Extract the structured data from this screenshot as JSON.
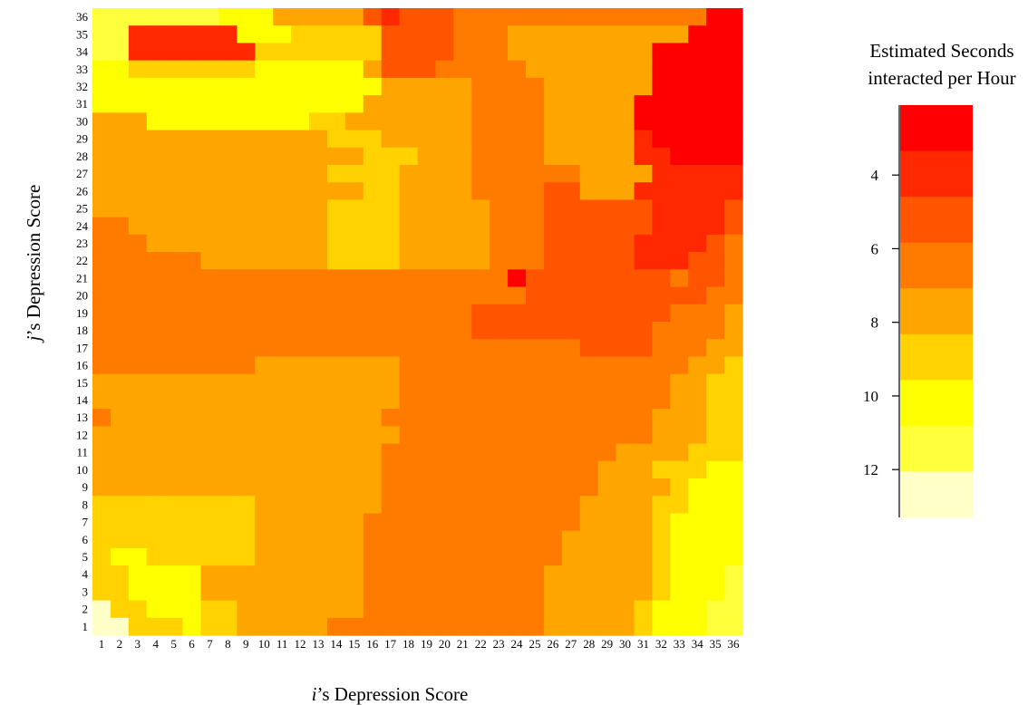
{
  "chart_data": {
    "type": "heatmap",
    "xlabel_italic": "i",
    "xlabel_rest": "’s Depression Score",
    "ylabel_italic": "j",
    "ylabel_rest": "’s Depression Score",
    "x_ticks": [
      "1",
      "2",
      "3",
      "4",
      "5",
      "6",
      "7",
      "8",
      "9",
      "10",
      "11",
      "12",
      "13",
      "14",
      "15",
      "16",
      "17",
      "18",
      "19",
      "20",
      "21",
      "22",
      "23",
      "24",
      "25",
      "26",
      "27",
      "28",
      "29",
      "30",
      "31",
      "32",
      "33",
      "34",
      "35",
      "36"
    ],
    "y_ticks": [
      "1",
      "2",
      "3",
      "4",
      "5",
      "6",
      "7",
      "8",
      "9",
      "10",
      "11",
      "12",
      "13",
      "14",
      "15",
      "16",
      "17",
      "18",
      "19",
      "20",
      "21",
      "22",
      "23",
      "24",
      "25",
      "26",
      "27",
      "28",
      "29",
      "30",
      "31",
      "32",
      "33",
      "34",
      "35",
      "36"
    ],
    "legend": {
      "title_lines": [
        "Estimated Seconds",
        "interacted per Hour"
      ],
      "ticks": [
        "4",
        "6",
        "8",
        "10",
        "12"
      ],
      "tick_values": [
        4,
        6,
        8,
        10,
        12
      ],
      "range": [
        2.1,
        13.3
      ],
      "colors_top_to_bottom": [
        "#FF0000",
        "#FF2800",
        "#FF5500",
        "#FF7B00",
        "#FFA500",
        "#FFD200",
        "#FFFF00",
        "#FFFF3C",
        "#FFFFC8"
      ]
    },
    "rows_top_to_bottom_y36_to_y1": [
      "777777766644444212223333333333333300",
      "771111116665555522223334444444444000",
      "771111111555555522223334444444400000",
      "665555555666666422233333444444400000",
      "666666666666666644444333344444400000",
      "666666666666666444444333344444000000",
      "444666666666554444444333344444000000",
      "444444444444455544444333344444100000",
      "444444444444444555444333344444110000",
      "444444444444455554444333333444411111",
      "444444444444444554444333322444111111",
      "444444444444455554444433322222211112",
      "334444444444455554444433322222211112",
      "333444444444455554444433322222111123",
      "333333444444455554444433322222111223",
      "333333333333333333333330222222223223",
      "333333333333333333333333222222222233",
      "333333333333333333333222222222223334",
      "333333333333333333333222222222233334",
      "333333333333333333333333333222233344",
      "333333333444444443333333333333333445",
      "444444444444444443333333333333334455",
      "444444444444444443333333333333334455",
      "344444444444444433333333333333344455",
      "444444444444444443333333333333344455",
      "444444444444444433333333333334444555",
      "444444444444444433333333333344455566",
      "444444444444444433333333333344445666",
      "555555555444444433333333333444455666",
      "555555555444444333333333333444456666",
      "555555555444444333333333334444456666",
      "566555555444444333333333334444456666",
      "556666444444444333333333344444456667",
      "556666444444444333333333344444456667",
      "855666554444444333333333344444566677",
      "885556554444433333333333344444566677"
    ]
  }
}
